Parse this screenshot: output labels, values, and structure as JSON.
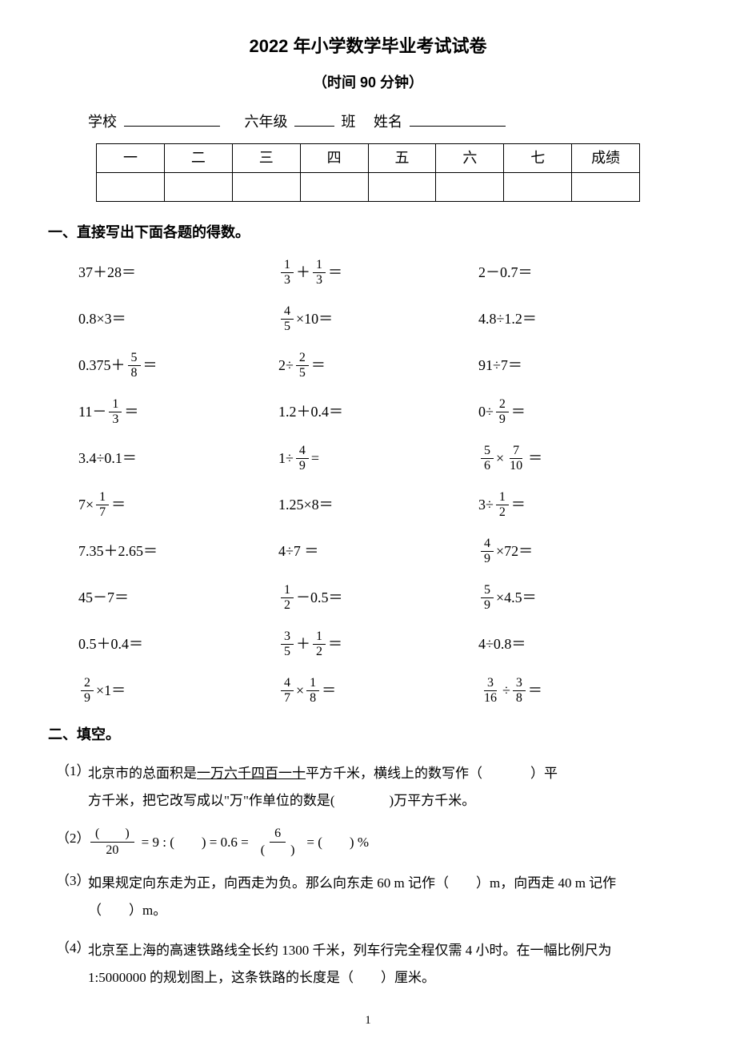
{
  "header": {
    "title": "2022 年小学数学毕业考试试卷",
    "subtitle": "（时间 90 分钟）",
    "school_label": "学校",
    "grade_label": "六年级",
    "class_label": "班",
    "name_label": "姓名"
  },
  "score_table": {
    "headers": [
      "一",
      "二",
      "三",
      "四",
      "五",
      "六",
      "七",
      "成绩"
    ]
  },
  "section1": {
    "title": "一、直接写出下面各题的得数。",
    "rows": [
      [
        {
          "type": "plain",
          "text": "37＋28＝"
        },
        {
          "type": "frac_op",
          "parts": [
            {
              "frac": [
                "1",
                "3"
              ]
            },
            {
              "text": " ＋"
            },
            {
              "frac": [
                "1",
                "3"
              ]
            },
            {
              "text": " ＝"
            }
          ]
        },
        {
          "type": "plain",
          "text": "2－0.7＝"
        }
      ],
      [
        {
          "type": "plain",
          "text": "0.8×3＝"
        },
        {
          "type": "frac_op",
          "parts": [
            {
              "frac": [
                "4",
                "5"
              ]
            },
            {
              "text": " ×10＝"
            }
          ]
        },
        {
          "type": "plain",
          "text": "4.8÷1.2＝"
        }
      ],
      [
        {
          "type": "frac_op",
          "parts": [
            {
              "text": "0.375＋"
            },
            {
              "frac": [
                "5",
                "8"
              ]
            },
            {
              "text": " ＝"
            }
          ]
        },
        {
          "type": "frac_op",
          "parts": [
            {
              "text": "2÷"
            },
            {
              "frac": [
                "2",
                "5"
              ]
            },
            {
              "text": " ＝"
            }
          ]
        },
        {
          "type": "plain",
          "text": "91÷7＝"
        }
      ],
      [
        {
          "type": "frac_op",
          "parts": [
            {
              "text": "11－ "
            },
            {
              "frac": [
                "1",
                "3"
              ]
            },
            {
              "text": " ＝"
            }
          ]
        },
        {
          "type": "plain",
          "text": "1.2＋0.4＝"
        },
        {
          "type": "frac_op",
          "parts": [
            {
              "text": "0÷"
            },
            {
              "frac": [
                "2",
                "9"
              ]
            },
            {
              "text": " ＝"
            }
          ]
        }
      ],
      [
        {
          "type": "plain",
          "text": "3.4÷0.1＝"
        },
        {
          "type": "frac_op",
          "parts": [
            {
              "text": "1÷"
            },
            {
              "frac": [
                "4",
                "9"
              ]
            },
            {
              "text": " ="
            }
          ]
        },
        {
          "type": "frac_op",
          "parts": [
            {
              "frac": [
                "5",
                "6"
              ]
            },
            {
              "text": " ×"
            },
            {
              "frac": [
                "7",
                "10"
              ]
            },
            {
              "text": " ＝"
            }
          ]
        }
      ],
      [
        {
          "type": "frac_op",
          "parts": [
            {
              "text": "7×"
            },
            {
              "frac": [
                "1",
                "7"
              ]
            },
            {
              "text": " ＝"
            }
          ]
        },
        {
          "type": "plain",
          "text": "1.25×8＝"
        },
        {
          "type": "frac_op",
          "parts": [
            {
              "text": "3÷"
            },
            {
              "frac": [
                "1",
                "2"
              ]
            },
            {
              "text": " ＝"
            }
          ]
        }
      ],
      [
        {
          "type": "plain",
          "text": "7.35＋2.65＝"
        },
        {
          "type": "plain",
          "text": "4÷7 ＝"
        },
        {
          "type": "frac_op",
          "parts": [
            {
              "frac": [
                "4",
                "9"
              ]
            },
            {
              "text": " ×72＝"
            }
          ]
        }
      ],
      [
        {
          "type": "plain",
          "text": "45－7＝"
        },
        {
          "type": "frac_op",
          "parts": [
            {
              "frac": [
                "1",
                "2"
              ]
            },
            {
              "text": " －0.5＝"
            }
          ]
        },
        {
          "type": "frac_op",
          "parts": [
            {
              "frac": [
                "5",
                "9"
              ]
            },
            {
              "text": " ×4.5＝"
            }
          ]
        }
      ],
      [
        {
          "type": "plain",
          "text": "0.5＋0.4＝"
        },
        {
          "type": "frac_op",
          "parts": [
            {
              "frac": [
                "3",
                "5"
              ]
            },
            {
              "text": "＋"
            },
            {
              "frac": [
                "1",
                "2"
              ]
            },
            {
              "text": " ＝"
            }
          ]
        },
        {
          "type": "plain",
          "text": "4÷0.8＝"
        }
      ],
      [
        {
          "type": "frac_op",
          "parts": [
            {
              "frac": [
                "2",
                "9"
              ]
            },
            {
              "text": " ×1＝"
            }
          ]
        },
        {
          "type": "frac_op",
          "parts": [
            {
              "frac": [
                "4",
                "7"
              ]
            },
            {
              "text": " ×"
            },
            {
              "frac": [
                "1",
                "8"
              ]
            },
            {
              "text": " ＝"
            }
          ]
        },
        {
          "type": "frac_op",
          "parts": [
            {
              "frac": [
                "3",
                "16"
              ]
            },
            {
              "text": " ÷"
            },
            {
              "frac": [
                "3",
                "8"
              ]
            },
            {
              "text": " ＝"
            }
          ]
        }
      ]
    ]
  },
  "section2": {
    "title": "二、填空。",
    "q1": {
      "num": "（1）",
      "line1_a": "北京市的总面积是",
      "line1_u": "一万六千四百一十",
      "line1_b": "平方千米，横线上的数写作（",
      "line1_c": "）平",
      "line2": "方千米，把它改写成以\"万\"作单位的数是(　　　　)万平方千米。"
    },
    "q2": {
      "num": "（2）",
      "paren_top": "(　　)",
      "den20": "20",
      "eq1": " = 9 : (　　) = 0.6 = ",
      "num6": "6",
      "paren_bot": "(　　)",
      "eq2": " = (　　) %"
    },
    "q3": {
      "num": "（3）",
      "line1": "如果规定向东走为正，向西走为负。那么向东走 60 m 记作（　　）m，向西走 40 m 记作",
      "line2": "（　　）m。"
    },
    "q4": {
      "num": "（4）",
      "line1": "北京至上海的高速铁路线全长约 1300 千米，列车行完全程仅需 4 小时。在一幅比例尺为",
      "line2": "1:5000000 的规划图上，这条铁路的长度是（　　）厘米。"
    }
  },
  "page_num": "1"
}
